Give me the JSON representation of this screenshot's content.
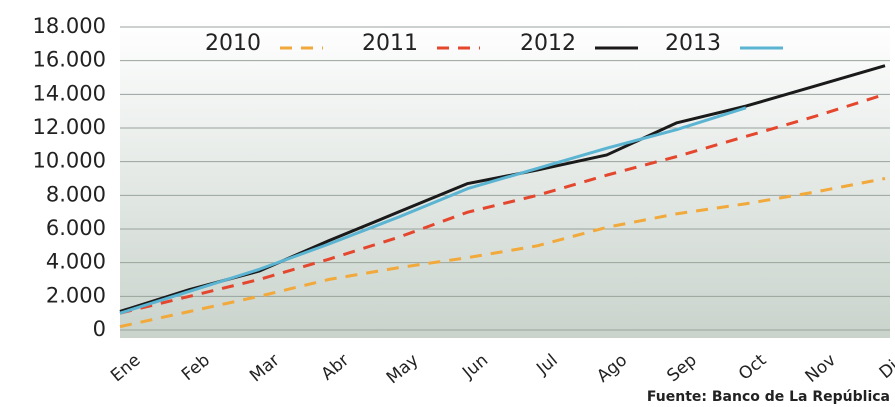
{
  "chart_data": {
    "type": "line",
    "categories": [
      "Ene",
      "Feb",
      "Mar",
      "Abr",
      "May",
      "Jun",
      "Jul",
      "Ago",
      "Sep",
      "Oct",
      "Nov",
      "Dic"
    ],
    "series": [
      {
        "name": "2010",
        "color": "#f2a93b",
        "dashed": true,
        "values": [
          200,
          1100,
          2000,
          3000,
          3700,
          4300,
          5000,
          6100,
          6900,
          7500,
          8200,
          9000
        ]
      },
      {
        "name": "2011",
        "color": "#e4472e",
        "dashed": true,
        "values": [
          1000,
          2000,
          3000,
          4200,
          5500,
          7000,
          8000,
          9200,
          10300,
          11500,
          12700,
          14000
        ]
      },
      {
        "name": "2012",
        "color": "#1a1a1a",
        "dashed": false,
        "values": [
          1100,
          2400,
          3500,
          5300,
          7000,
          8700,
          9500,
          10400,
          12300,
          13300,
          14500,
          15700
        ]
      },
      {
        "name": "2013",
        "color": "#5ab4d2",
        "dashed": false,
        "values": [
          1000,
          2300,
          3600,
          5100,
          6700,
          8400,
          9600,
          10800,
          11900,
          13200,
          null,
          null
        ]
      }
    ],
    "ylim": [
      0,
      18000
    ],
    "yticks": [
      0,
      {
        "value": 2000,
        "label": "2.000"
      },
      {
        "value": 4000,
        "label": "4.000"
      },
      {
        "value": 6000,
        "label": "6.000"
      },
      {
        "value": 8000,
        "label": "8.000"
      },
      {
        "value": 10000,
        "label": "10.000"
      },
      {
        "value": 12000,
        "label": "12.000"
      },
      {
        "value": 14000,
        "label": "14.000"
      },
      {
        "value": 16000,
        "label": "16.000"
      },
      {
        "value": 18000,
        "label": "18.000"
      }
    ],
    "grid": true,
    "source": "Fuente: Banco de La República"
  }
}
